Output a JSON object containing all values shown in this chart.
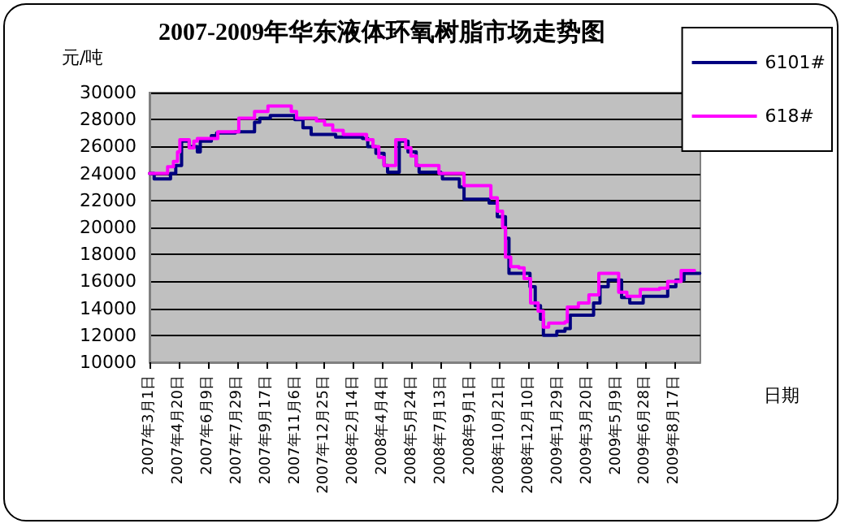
{
  "chart_data": {
    "type": "step",
    "title": "2007-2009年华东液体环氧树脂市场走势图",
    "ylabel": "元/吨",
    "xlabel": "日期",
    "xlim": [
      "2007-03-01",
      "2009-09-30"
    ],
    "xticks": [
      {
        "value": "2007-03-01",
        "label": "2007年3月1日"
      },
      {
        "value": "2007-04-20",
        "label": "2007年4月20日"
      },
      {
        "value": "2007-06-09",
        "label": "2007年6月9日"
      },
      {
        "value": "2007-07-29",
        "label": "2007年7月29日"
      },
      {
        "value": "2007-09-17",
        "label": "2007年9月17日"
      },
      {
        "value": "2007-11-06",
        "label": "2007年11月6日"
      },
      {
        "value": "2007-12-25",
        "label": "2007年12月25日"
      },
      {
        "value": "2008-02-14",
        "label": "2008年2月14日"
      },
      {
        "value": "2008-04-04",
        "label": "2008年4月4日"
      },
      {
        "value": "2008-05-24",
        "label": "2008年5月24日"
      },
      {
        "value": "2008-07-13",
        "label": "2008年7月13日"
      },
      {
        "value": "2008-09-01",
        "label": "2008年9月1日"
      },
      {
        "value": "2008-10-21",
        "label": "2008年10月21日"
      },
      {
        "value": "2008-12-10",
        "label": "2008年12月10日"
      },
      {
        "value": "2009-01-29",
        "label": "2009年1月29日"
      },
      {
        "value": "2009-03-20",
        "label": "2009年3月20日"
      },
      {
        "value": "2009-05-09",
        "label": "2009年5月9日"
      },
      {
        "value": "2009-06-28",
        "label": "2009年6月28日"
      },
      {
        "value": "2009-08-17",
        "label": "2009年8月17日"
      }
    ],
    "ylim": [
      10000,
      30000
    ],
    "yticks": [
      10000,
      12000,
      14000,
      16000,
      18000,
      20000,
      22000,
      24000,
      26000,
      28000,
      30000
    ],
    "grid": "y",
    "legend": "top right",
    "marker": "none",
    "line_style": "solid",
    "series": [
      {
        "name": "6101#",
        "color": "#000080",
        "x": [
          "2007-03-01",
          "2007-03-09",
          "2007-04-01",
          "2007-04-06",
          "2007-04-15",
          "2007-04-25",
          "2007-05-08",
          "2007-05-22",
          "2007-05-27",
          "2007-06-15",
          "2007-06-24",
          "2007-07-26",
          "2007-08-09",
          "2007-08-28",
          "2007-09-06",
          "2007-09-24",
          "2007-10-27",
          "2007-11-05",
          "2007-11-19",
          "2007-12-03",
          "2008-01-09",
          "2008-01-14",
          "2008-02-29",
          "2008-03-09",
          "2008-03-23",
          "2008-04-06",
          "2008-04-12",
          "2008-04-29",
          "2008-05-02",
          "2008-05-17",
          "2008-05-31",
          "2008-06-05",
          "2008-07-12",
          "2008-07-15",
          "2008-08-09",
          "2008-08-13",
          "2008-08-21",
          "2008-09-29",
          "2008-10-03",
          "2008-10-17",
          "2008-10-31",
          "2008-11-06",
          "2008-12-02",
          "2008-12-12",
          "2008-12-21",
          "2008-12-30",
          "2009-01-04",
          "2009-01-18",
          "2009-01-27",
          "2009-02-10",
          "2009-02-19",
          "2009-03-23",
          "2009-03-31",
          "2009-04-11",
          "2009-04-25",
          "2009-05-04",
          "2009-05-18",
          "2009-06-01",
          "2009-06-19",
          "2009-06-24",
          "2009-07-26",
          "2009-08-05",
          "2009-08-19",
          "2009-09-02",
          "2009-09-29"
        ],
        "values": [
          24000,
          23600,
          23600,
          24000,
          24600,
          26400,
          26000,
          25600,
          26400,
          26800,
          27000,
          27100,
          27100,
          27800,
          28100,
          28300,
          28300,
          28000,
          27400,
          26900,
          26900,
          26700,
          26600,
          26000,
          25500,
          24600,
          24100,
          24100,
          26400,
          25600,
          24600,
          24100,
          24000,
          23600,
          23600,
          23000,
          22100,
          22100,
          21800,
          20800,
          19200,
          16600,
          16600,
          15600,
          14200,
          13200,
          12000,
          12000,
          12300,
          12500,
          13500,
          13500,
          14400,
          15600,
          16100,
          16100,
          14800,
          14400,
          14400,
          14900,
          14900,
          15600,
          16100,
          16600,
          16600
        ]
      },
      {
        "name": "618#",
        "color": "#ff00ff",
        "x": [
          "2007-03-01",
          "2007-03-28",
          "2007-04-01",
          "2007-04-11",
          "2007-04-18",
          "2007-04-22",
          "2007-05-04",
          "2007-05-08",
          "2007-05-16",
          "2007-05-22",
          "2007-06-19",
          "2007-06-26",
          "2007-07-26",
          "2007-08-01",
          "2007-08-23",
          "2007-08-28",
          "2007-09-15",
          "2007-09-20",
          "2007-10-27",
          "2007-10-30",
          "2007-11-08",
          "2007-12-07",
          "2007-12-12",
          "2007-12-26",
          "2008-01-09",
          "2008-01-27",
          "2008-02-29",
          "2008-03-07",
          "2008-03-18",
          "2008-03-28",
          "2008-04-06",
          "2008-04-24",
          "2008-04-26",
          "2008-05-08",
          "2008-05-13",
          "2008-05-22",
          "2008-05-31",
          "2008-07-05",
          "2008-07-09",
          "2008-08-12",
          "2008-08-21",
          "2008-09-29",
          "2008-10-06",
          "2008-10-17",
          "2008-10-26",
          "2008-10-31",
          "2008-11-09",
          "2008-11-23",
          "2008-12-02",
          "2008-12-13",
          "2008-12-26",
          "2009-01-04",
          "2009-01-13",
          "2009-02-10",
          "2009-02-14",
          "2009-03-05",
          "2009-03-23",
          "2009-04-09",
          "2009-04-30",
          "2009-05-13",
          "2009-05-27",
          "2009-06-19",
          "2009-07-22",
          "2009-08-05",
          "2009-08-28",
          "2009-09-20"
        ],
        "values": [
          24000,
          24000,
          24500,
          24900,
          25600,
          26500,
          26500,
          25900,
          26400,
          26600,
          26600,
          27100,
          27100,
          28100,
          28100,
          28600,
          28600,
          29000,
          29000,
          28600,
          28100,
          28100,
          27900,
          27600,
          27200,
          26900,
          26900,
          26500,
          26000,
          25200,
          24600,
          24600,
          26500,
          26500,
          25900,
          25300,
          24600,
          24600,
          24000,
          24000,
          23100,
          23100,
          22200,
          21200,
          20000,
          17800,
          17100,
          17000,
          16200,
          14400,
          13800,
          12600,
          12900,
          13000,
          14100,
          14400,
          15000,
          16600,
          16600,
          15200,
          14900,
          15400,
          15500,
          16000,
          16800,
          16800
        ]
      }
    ]
  }
}
